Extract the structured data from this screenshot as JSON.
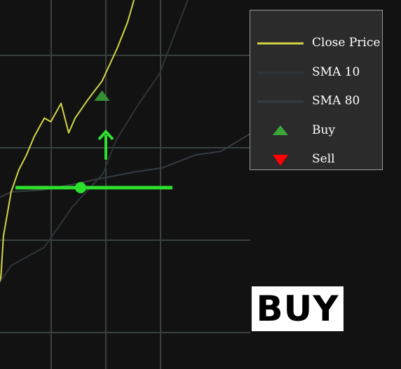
{
  "colors": {
    "background": "#121212",
    "grid": "#3a4040",
    "close_price": "#d4d447",
    "sma10": "#2f3438",
    "sma80": "#363c44",
    "buy": "#3aa63a",
    "sell": "#ff0000",
    "indicator": "#2ee02e"
  },
  "legend": {
    "items": [
      {
        "label": "Close Price",
        "color": "#d4d447",
        "marker": "line"
      },
      {
        "label": "SMA 10",
        "color": "#2f3438",
        "marker": "line"
      },
      {
        "label": "SMA 80",
        "color": "#363c44",
        "marker": "line"
      },
      {
        "label": "Buy",
        "color": "#3aa63a",
        "marker": "triangle-up"
      },
      {
        "label": "Sell",
        "color": "#ff0000",
        "marker": "triangle-down"
      }
    ]
  },
  "signal_text": "BUY",
  "chart_data": {
    "type": "line",
    "xlim": [
      0,
      100
    ],
    "ylim": [
      0,
      100
    ],
    "grid": true,
    "legend_position": "top-right",
    "series": [
      {
        "name": "Close Price",
        "x": [
          0,
          2,
          3,
          6,
          9,
          12,
          15,
          19,
          21.5,
          25.5,
          28.5,
          31,
          36,
          41.5,
          47.5,
          51.5,
          54
        ],
        "y": [
          20,
          25,
          36,
          48,
          54,
          58,
          63,
          68,
          67,
          72,
          64,
          68,
          73,
          78,
          87,
          94,
          100
        ]
      },
      {
        "name": "SMA 10",
        "x": [
          0,
          6,
          19,
          30,
          42,
          47,
          56,
          64,
          75
        ],
        "y": [
          22,
          28,
          33,
          44,
          53,
          62,
          72,
          80,
          100
        ]
      },
      {
        "name": "SMA 80",
        "x": [
          0,
          6,
          18,
          30,
          40,
          55,
          65,
          78,
          88,
          100
        ],
        "y": [
          46,
          48,
          48.5,
          50,
          51.5,
          53.5,
          54.5,
          58,
          59,
          64
        ]
      }
    ],
    "buy_markers": [
      {
        "x": 41.5,
        "y": 74
      }
    ],
    "sell_markers": []
  }
}
